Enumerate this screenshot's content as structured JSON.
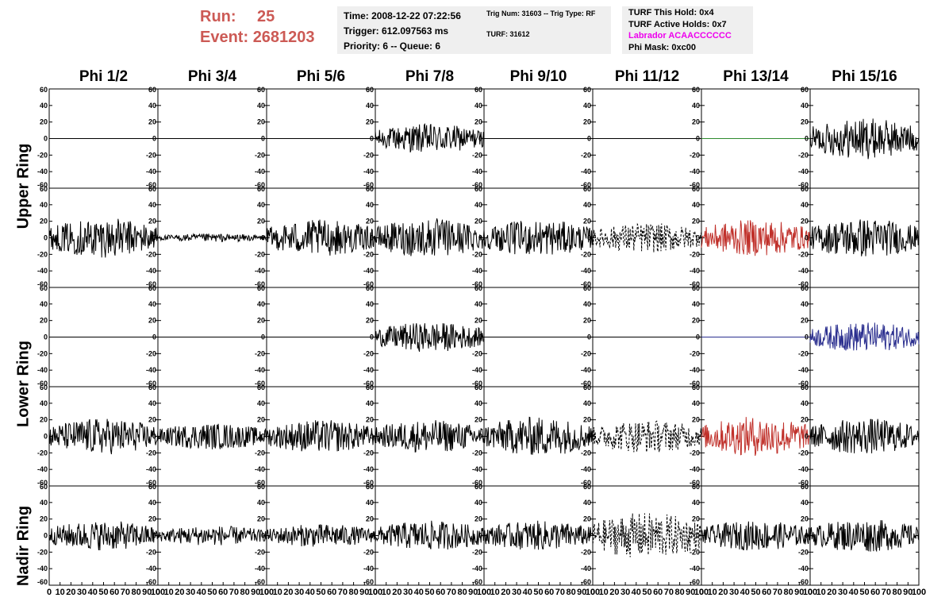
{
  "header": {
    "run_label": "Run:",
    "run_value": "25",
    "event_label": "Event:",
    "event_value": "2681203"
  },
  "info_time": {
    "time": "Time: 2008-12-22 07:22:56",
    "trigger": "Trigger: 612.097563 ms",
    "priority": "Priority: 6 -- Queue: 6"
  },
  "info_trig": {
    "line1": "Trig Num: 31603 -- Trig Type: RF",
    "line2": "TURF: 31612"
  },
  "info_turf": {
    "this_hold": "TURF This Hold: 0x4",
    "active_holds": "TURF Active Holds: 0x7",
    "labrador": "Labrador ACAACCCCCC",
    "phi_mask": "Phi Mask: 0xc00"
  },
  "phi_titles": [
    "Phi 1/2",
    "Phi 3/4",
    "Phi 5/6",
    "Phi 7/8",
    "Phi 9/10",
    "Phi 11/12",
    "Phi 13/14",
    "Phi 15/16"
  ],
  "ring_labels": [
    "Upper Ring",
    "Lower Ring",
    "Nadir Ring"
  ],
  "y_axis": {
    "range": [
      -60,
      60
    ],
    "ticks": [
      "60",
      "40",
      "20",
      "0",
      "-20",
      "-40",
      "-60"
    ]
  },
  "x_axis": {
    "range": [
      0,
      100
    ],
    "ticks": [
      "0",
      "10",
      "20",
      "30",
      "40",
      "50",
      "60",
      "70",
      "80",
      "90",
      "100"
    ]
  },
  "colors": {
    "trace": "#000000",
    "red_trace": "#c0302a",
    "blue_trace": "#2b2f8f",
    "green_trace": "#2e8b2e",
    "run_text": "#cc5a55",
    "magenta": "#ee00ee"
  },
  "chart_data": {
    "type": "line",
    "rows": 5,
    "cols": 8,
    "xlim": [
      0,
      100
    ],
    "ylim": [
      -60,
      60
    ],
    "panels": [
      {
        "row": 0,
        "col": 0,
        "style": "flat",
        "color": "black",
        "amplitude": 0
      },
      {
        "row": 0,
        "col": 1,
        "style": "flat",
        "color": "black",
        "amplitude": 0
      },
      {
        "row": 0,
        "col": 2,
        "style": "flat",
        "color": "black",
        "amplitude": 0
      },
      {
        "row": 0,
        "col": 3,
        "style": "noise",
        "color": "black",
        "amplitude": 18
      },
      {
        "row": 0,
        "col": 4,
        "style": "flat",
        "color": "black",
        "amplitude": 0
      },
      {
        "row": 0,
        "col": 5,
        "style": "flat",
        "color": "black",
        "amplitude": 0
      },
      {
        "row": 0,
        "col": 6,
        "style": "flat",
        "color": "green",
        "amplitude": 0
      },
      {
        "row": 0,
        "col": 7,
        "style": "noise",
        "color": "black",
        "amplitude": 25
      },
      {
        "row": 1,
        "col": 0,
        "style": "noise",
        "color": "black",
        "amplitude": 24
      },
      {
        "row": 1,
        "col": 1,
        "style": "noise",
        "color": "black",
        "amplitude": 5
      },
      {
        "row": 1,
        "col": 2,
        "style": "noise",
        "color": "black",
        "amplitude": 22
      },
      {
        "row": 1,
        "col": 3,
        "style": "noise",
        "color": "black",
        "amplitude": 24
      },
      {
        "row": 1,
        "col": 4,
        "style": "noise",
        "color": "black",
        "amplitude": 22
      },
      {
        "row": 1,
        "col": 5,
        "style": "dashed",
        "color": "black",
        "amplitude": 18
      },
      {
        "row": 1,
        "col": 6,
        "style": "noise",
        "color": "red",
        "amplitude": 22
      },
      {
        "row": 1,
        "col": 7,
        "style": "noise",
        "color": "black",
        "amplitude": 24
      },
      {
        "row": 2,
        "col": 0,
        "style": "flat",
        "color": "black",
        "amplitude": 0
      },
      {
        "row": 2,
        "col": 1,
        "style": "flat",
        "color": "black",
        "amplitude": 0
      },
      {
        "row": 2,
        "col": 2,
        "style": "flat",
        "color": "black",
        "amplitude": 0
      },
      {
        "row": 2,
        "col": 3,
        "style": "noise",
        "color": "black",
        "amplitude": 18
      },
      {
        "row": 2,
        "col": 4,
        "style": "flat",
        "color": "black",
        "amplitude": 0
      },
      {
        "row": 2,
        "col": 5,
        "style": "flat",
        "color": "black",
        "amplitude": 0
      },
      {
        "row": 2,
        "col": 6,
        "style": "flat",
        "color": "blue",
        "amplitude": 0
      },
      {
        "row": 2,
        "col": 7,
        "style": "noise",
        "color": "blue",
        "amplitude": 18
      },
      {
        "row": 3,
        "col": 0,
        "style": "noise",
        "color": "black",
        "amplitude": 22
      },
      {
        "row": 3,
        "col": 1,
        "style": "noise",
        "color": "black",
        "amplitude": 16
      },
      {
        "row": 3,
        "col": 2,
        "style": "noise",
        "color": "black",
        "amplitude": 20
      },
      {
        "row": 3,
        "col": 3,
        "style": "noise",
        "color": "black",
        "amplitude": 20
      },
      {
        "row": 3,
        "col": 4,
        "style": "noise",
        "color": "black",
        "amplitude": 24
      },
      {
        "row": 3,
        "col": 5,
        "style": "dashed",
        "color": "black",
        "amplitude": 20
      },
      {
        "row": 3,
        "col": 6,
        "style": "noise",
        "color": "red",
        "amplitude": 24
      },
      {
        "row": 3,
        "col": 7,
        "style": "noise",
        "color": "black",
        "amplitude": 22
      },
      {
        "row": 4,
        "col": 0,
        "style": "noise",
        "color": "black",
        "amplitude": 18
      },
      {
        "row": 4,
        "col": 1,
        "style": "noise",
        "color": "black",
        "amplitude": 12
      },
      {
        "row": 4,
        "col": 2,
        "style": "noise",
        "color": "black",
        "amplitude": 14
      },
      {
        "row": 4,
        "col": 3,
        "style": "noise",
        "color": "black",
        "amplitude": 18
      },
      {
        "row": 4,
        "col": 4,
        "style": "noise",
        "color": "black",
        "amplitude": 18
      },
      {
        "row": 4,
        "col": 5,
        "style": "dashed",
        "color": "black",
        "amplitude": 28
      },
      {
        "row": 4,
        "col": 6,
        "style": "noise",
        "color": "black",
        "amplitude": 18
      },
      {
        "row": 4,
        "col": 7,
        "style": "noise",
        "color": "black",
        "amplitude": 20
      }
    ]
  }
}
